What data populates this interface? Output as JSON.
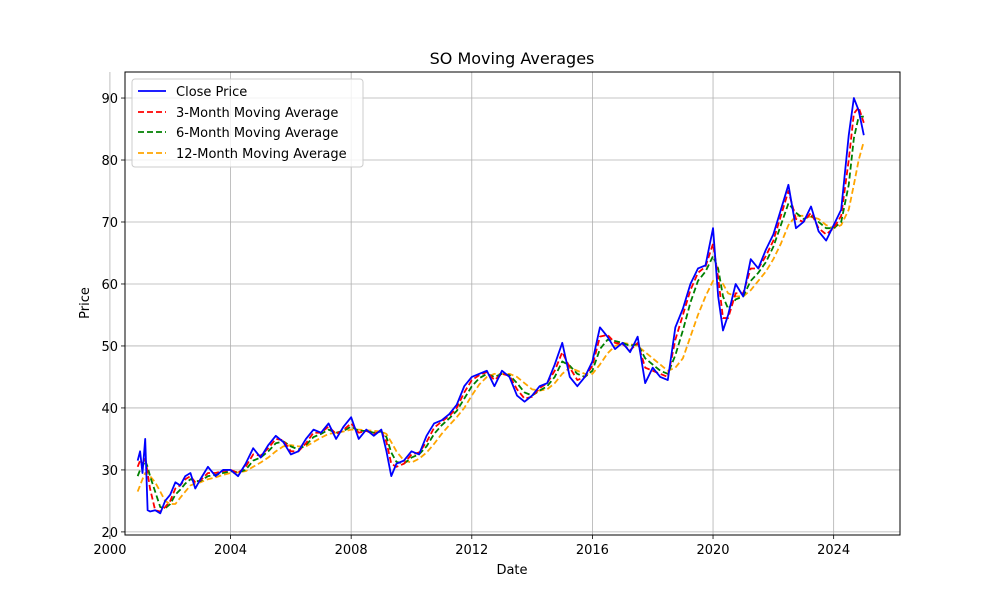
{
  "chart_data": {
    "type": "line",
    "title": "SO Moving Averages",
    "xlabel": "Date",
    "ylabel": "Price",
    "xlim": [
      2000.5,
      2026.2
    ],
    "ylim": [
      19.5,
      94.2
    ],
    "xticks": [
      2000,
      2004,
      2008,
      2012,
      2016,
      2020,
      2024
    ],
    "yticks": [
      20,
      30,
      40,
      50,
      60,
      70,
      80,
      90
    ],
    "grid": true,
    "legend_position": "top-left",
    "x": [
      2000.92,
      2001.0,
      2001.08,
      2001.17,
      2001.25,
      2001.33,
      2001.5,
      2001.67,
      2001.83,
      2002.0,
      2002.17,
      2002.33,
      2002.5,
      2002.67,
      2002.83,
      2003.0,
      2003.25,
      2003.5,
      2003.75,
      2004.0,
      2004.25,
      2004.5,
      2004.75,
      2005.0,
      2005.25,
      2005.5,
      2005.75,
      2006.0,
      2006.25,
      2006.5,
      2006.75,
      2007.0,
      2007.25,
      2007.5,
      2007.75,
      2008.0,
      2008.25,
      2008.5,
      2008.75,
      2009.0,
      2009.17,
      2009.33,
      2009.5,
      2009.75,
      2010.0,
      2010.25,
      2010.5,
      2010.75,
      2011.0,
      2011.25,
      2011.5,
      2011.75,
      2012.0,
      2012.25,
      2012.5,
      2012.75,
      2013.0,
      2013.25,
      2013.5,
      2013.75,
      2014.0,
      2014.25,
      2014.5,
      2014.75,
      2015.0,
      2015.25,
      2015.5,
      2015.75,
      2016.0,
      2016.25,
      2016.5,
      2016.75,
      2017.0,
      2017.25,
      2017.5,
      2017.75,
      2018.0,
      2018.25,
      2018.5,
      2018.75,
      2019.0,
      2019.25,
      2019.5,
      2019.75,
      2020.0,
      2020.17,
      2020.33,
      2020.5,
      2020.75,
      2021.0,
      2021.25,
      2021.5,
      2021.75,
      2022.0,
      2022.25,
      2022.5,
      2022.75,
      2023.0,
      2023.25,
      2023.5,
      2023.75,
      2024.0,
      2024.25,
      2024.5,
      2024.67,
      2024.83,
      2025.0
    ],
    "series": [
      {
        "name": "Close Price",
        "color": "#0000ff",
        "style": "solid",
        "values": [
          31.5,
          33.0,
          29.5,
          35.0,
          23.5,
          23.3,
          23.5,
          23.0,
          25.0,
          26.0,
          28.0,
          27.5,
          29.0,
          29.5,
          27.0,
          28.5,
          30.5,
          29.0,
          30.0,
          30.0,
          29.0,
          31.0,
          33.5,
          32.0,
          34.0,
          35.5,
          34.5,
          32.5,
          33.0,
          35.0,
          36.5,
          36.0,
          37.5,
          35.0,
          37.0,
          38.5,
          35.0,
          36.5,
          35.5,
          36.5,
          33.0,
          29.0,
          31.0,
          31.5,
          33.0,
          32.5,
          35.5,
          37.5,
          38.0,
          39.0,
          40.5,
          43.5,
          45.0,
          45.5,
          46.0,
          43.5,
          46.0,
          45.0,
          42.0,
          41.0,
          42.0,
          43.5,
          44.0,
          47.0,
          50.5,
          45.0,
          43.5,
          45.0,
          47.5,
          53.0,
          51.5,
          49.5,
          50.5,
          49.0,
          51.5,
          44.0,
          46.5,
          45.0,
          44.5,
          53.0,
          56.0,
          60.0,
          62.5,
          63.0,
          69.0,
          58.0,
          52.5,
          55.0,
          60.0,
          58.0,
          64.0,
          62.5,
          65.5,
          68.0,
          72.0,
          76.0,
          69.0,
          70.0,
          72.5,
          68.5,
          67.0,
          69.5,
          72.0,
          84.0,
          90.0,
          88.0,
          84.0
        ]
      },
      {
        "name": "3-Month Moving Average",
        "color": "#ff0000",
        "style": "dashed",
        "values": [
          30.5,
          31.5,
          31.0,
          32.0,
          29.5,
          27.0,
          23.5,
          23.3,
          24.0,
          25.0,
          27.0,
          27.5,
          28.5,
          29.0,
          28.0,
          28.3,
          29.5,
          29.5,
          29.8,
          30.0,
          29.5,
          30.5,
          32.5,
          32.3,
          33.5,
          35.0,
          34.8,
          33.0,
          33.0,
          34.3,
          36.0,
          36.0,
          37.0,
          35.8,
          36.5,
          37.5,
          36.0,
          36.3,
          35.8,
          36.3,
          34.5,
          31.0,
          30.5,
          31.0,
          32.5,
          32.8,
          34.5,
          36.8,
          37.8,
          38.7,
          40.0,
          42.5,
          44.5,
          45.3,
          45.8,
          44.5,
          45.5,
          45.2,
          43.0,
          41.5,
          41.8,
          43.2,
          44.0,
          46.0,
          49.0,
          46.5,
          44.5,
          45.0,
          46.8,
          51.5,
          51.8,
          50.5,
          50.3,
          49.3,
          50.5,
          46.5,
          46.0,
          45.5,
          45.0,
          51.0,
          55.0,
          59.0,
          61.8,
          62.8,
          66.5,
          61.0,
          54.5,
          54.5,
          58.5,
          58.5,
          62.5,
          62.5,
          64.5,
          67.0,
          71.0,
          75.0,
          70.5,
          70.0,
          71.5,
          69.0,
          68.0,
          69.0,
          71.0,
          80.0,
          87.5,
          88.5,
          86.0
        ]
      },
      {
        "name": "6-Month Moving Average",
        "color": "#008000",
        "style": "dashed",
        "values": [
          29.0,
          30.0,
          30.5,
          31.5,
          30.5,
          29.0,
          26.5,
          24.0,
          23.8,
          24.5,
          26.0,
          26.8,
          27.8,
          28.5,
          28.2,
          28.2,
          29.0,
          29.2,
          29.5,
          29.8,
          29.6,
          30.0,
          31.5,
          32.0,
          33.0,
          34.3,
          34.6,
          33.8,
          33.3,
          34.0,
          35.3,
          35.8,
          36.5,
          36.0,
          36.3,
          37.0,
          36.3,
          36.3,
          36.0,
          36.2,
          35.3,
          32.8,
          31.3,
          31.0,
          32.0,
          32.5,
          33.8,
          35.8,
          37.2,
          38.3,
          39.5,
          41.5,
          43.5,
          44.8,
          45.5,
          45.0,
          45.5,
          45.3,
          44.0,
          42.5,
          42.0,
          42.8,
          43.5,
          45.0,
          47.5,
          46.8,
          45.5,
          45.0,
          46.0,
          49.5,
          51.0,
          50.8,
          50.5,
          50.0,
          50.3,
          48.0,
          47.0,
          46.0,
          45.5,
          48.5,
          52.5,
          57.0,
          60.5,
          62.0,
          64.5,
          62.5,
          58.0,
          56.0,
          57.5,
          58.0,
          60.5,
          61.8,
          63.5,
          66.0,
          69.5,
          73.0,
          71.5,
          70.5,
          71.0,
          70.0,
          69.0,
          69.0,
          70.0,
          76.0,
          83.5,
          87.0,
          87.0
        ]
      },
      {
        "name": "12-Month Moving Average",
        "color": "#ffa500",
        "style": "dashed",
        "values": [
          26.5,
          27.5,
          28.5,
          29.5,
          29.5,
          29.0,
          28.0,
          26.5,
          25.0,
          24.5,
          24.5,
          25.5,
          26.5,
          27.5,
          27.8,
          28.0,
          28.5,
          28.8,
          29.2,
          29.5,
          29.6,
          29.8,
          30.5,
          31.2,
          32.0,
          33.0,
          33.8,
          34.0,
          33.8,
          33.8,
          34.5,
          35.2,
          35.8,
          36.0,
          36.2,
          36.5,
          36.5,
          36.4,
          36.3,
          36.2,
          35.8,
          34.5,
          33.0,
          31.5,
          31.2,
          31.8,
          32.8,
          34.2,
          35.8,
          37.2,
          38.5,
          40.0,
          42.0,
          43.8,
          45.0,
          45.5,
          45.5,
          45.5,
          45.0,
          44.0,
          43.0,
          42.8,
          43.0,
          44.0,
          45.5,
          46.5,
          46.0,
          45.5,
          45.5,
          47.0,
          48.8,
          50.0,
          50.5,
          50.3,
          50.0,
          49.0,
          48.0,
          47.0,
          46.0,
          46.5,
          48.0,
          51.5,
          55.0,
          58.0,
          60.5,
          61.0,
          60.0,
          58.5,
          58.0,
          58.0,
          59.0,
          60.5,
          62.0,
          64.0,
          66.5,
          69.5,
          71.0,
          71.0,
          70.8,
          70.5,
          69.5,
          69.0,
          69.5,
          72.0,
          76.0,
          80.0,
          83.0
        ]
      }
    ]
  }
}
